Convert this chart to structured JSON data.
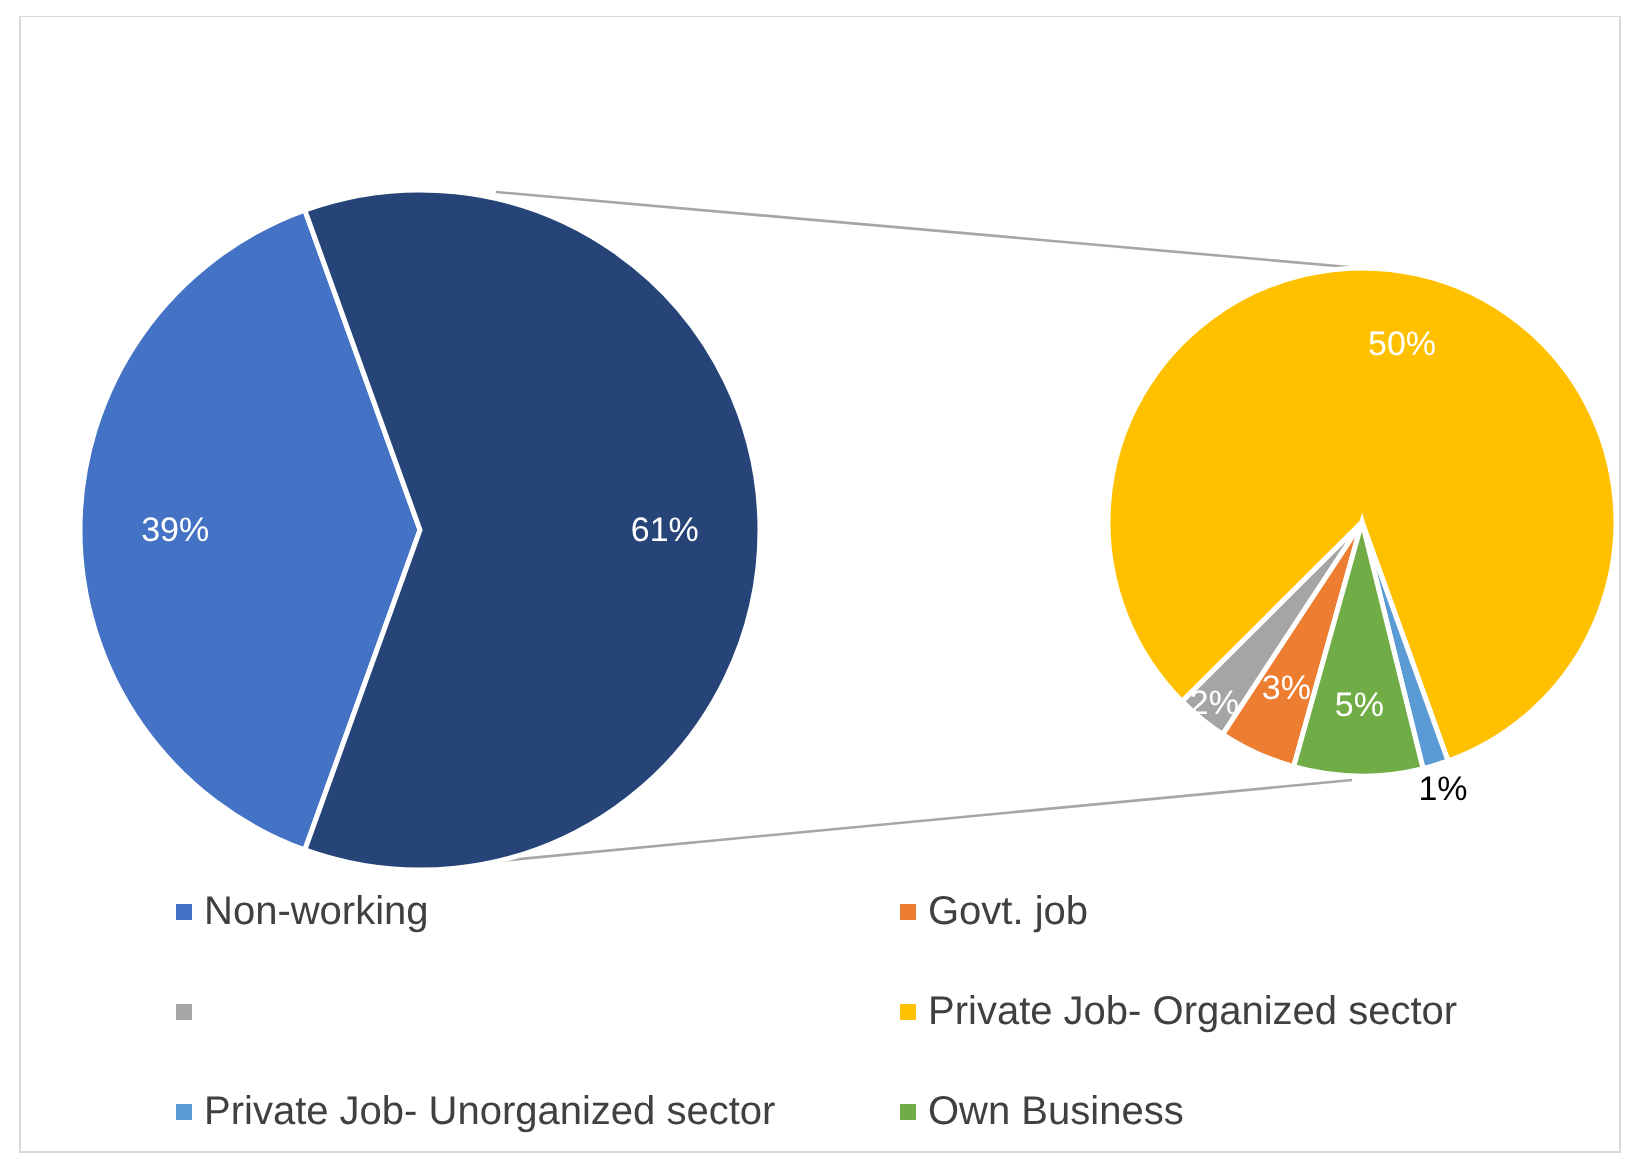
{
  "chart_data": [
    {
      "type": "pie",
      "categories": [
        "Non-working",
        null
      ],
      "values": [
        39,
        61
      ],
      "colors": [
        "#4472c4",
        "#264478"
      ],
      "value_labels": [
        "39%",
        "61%"
      ],
      "legend": "bottom"
    },
    {
      "type": "pie",
      "categories": [
        "Govt. job",
        null,
        "Private Job- Organized sector",
        "Private Job- Unorganized sector",
        "Own Business"
      ],
      "values": [
        3,
        2,
        50,
        1,
        5
      ],
      "colors": [
        "#ed7d31",
        "#a5a5a5",
        "#ffc000",
        "#5b9bd5",
        "#70ad47"
      ],
      "value_labels": [
        "3%",
        "2%",
        "50%",
        "1%",
        "5%"
      ],
      "legend": "bottom"
    }
  ]
}
